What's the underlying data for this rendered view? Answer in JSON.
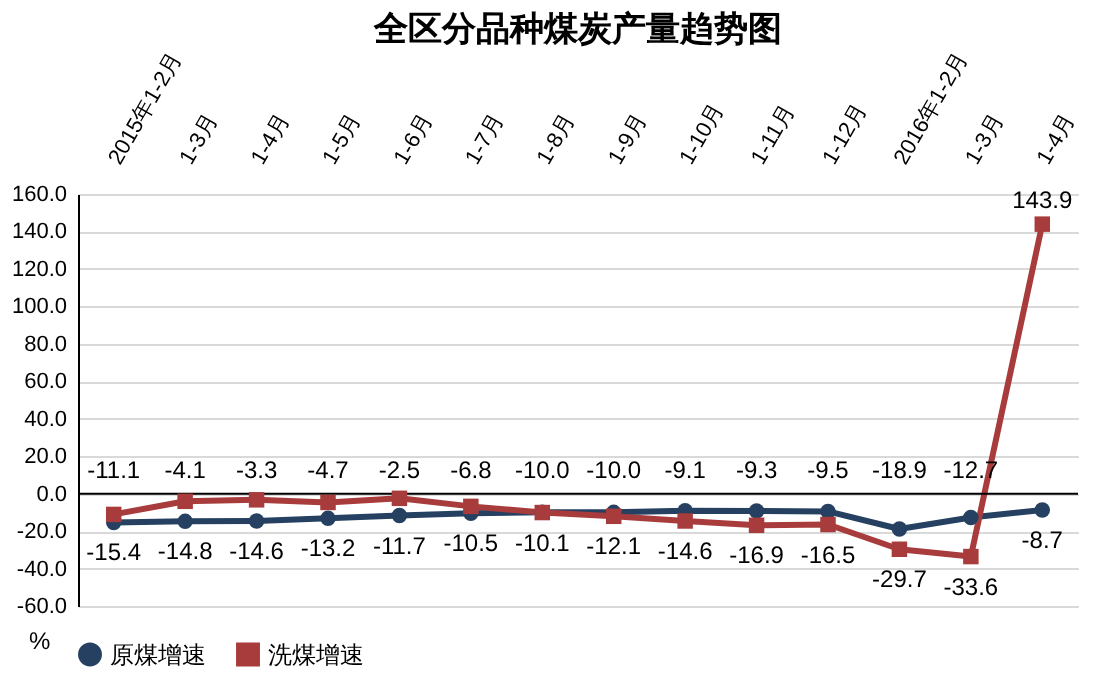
{
  "chart_data": {
    "type": "line",
    "title": "全区分品种煤炭产量趋势图",
    "ylabel": "%",
    "categories": [
      "2015年1-2月",
      "1-3月",
      "1-4月",
      "1-5月",
      "1-6月",
      "1-7月",
      "1-8月",
      "1-9月",
      "1-10月",
      "1-11月",
      "1-12月",
      "2016年1-2月",
      "1-3月",
      "1-4月"
    ],
    "series": [
      {
        "name": "原煤增速",
        "color": "#254061",
        "marker": "circle",
        "values": [
          -15.4,
          -14.8,
          -14.6,
          -13.2,
          -11.7,
          -10.5,
          -10.0,
          -10.0,
          -9.1,
          -9.3,
          -9.5,
          -18.9,
          -12.7,
          -8.7
        ],
        "value_labels": [
          "-15.4",
          "-14.8",
          "-14.6",
          "-13.2",
          "-11.7",
          "-10.5",
          "-10.0",
          "-10.0",
          "-9.1",
          "-9.3",
          "-9.5",
          "-18.9",
          "-12.7",
          "-8.7"
        ]
      },
      {
        "name": "洗煤增速",
        "color": "#a83c3c",
        "marker": "square",
        "values": [
          -11.1,
          -4.1,
          -3.3,
          -4.7,
          -2.5,
          -6.8,
          -10.1,
          -12.1,
          -14.6,
          -16.9,
          -16.5,
          -29.7,
          -33.6,
          143.9
        ],
        "value_labels": [
          "-11.1",
          "-4.1",
          "-3.3",
          "-4.7",
          "-2.5",
          "-6.8",
          "-10.1",
          "-12.1",
          "-14.6",
          "-16.9",
          "-16.5",
          "-29.7",
          "-33.6",
          "143.9"
        ]
      }
    ],
    "ylim": [
      -60,
      160
    ],
    "yticks": [
      {
        "value": -60,
        "label": "-60.0"
      },
      {
        "value": -40,
        "label": "-40.0"
      },
      {
        "value": -20,
        "label": "-20.0"
      },
      {
        "value": 0,
        "label": "0.0"
      },
      {
        "value": 20,
        "label": "20.0"
      },
      {
        "value": 40,
        "label": "40.0"
      },
      {
        "value": 60,
        "label": "60.0"
      },
      {
        "value": 80,
        "label": "80.0"
      },
      {
        "value": 100,
        "label": "100.0"
      },
      {
        "value": 120,
        "label": "120.0"
      },
      {
        "value": 140,
        "label": "140.0"
      },
      {
        "value": 160,
        "label": "160.0"
      }
    ],
    "grid": "y",
    "legend": "bottom",
    "line_style": "solid"
  }
}
